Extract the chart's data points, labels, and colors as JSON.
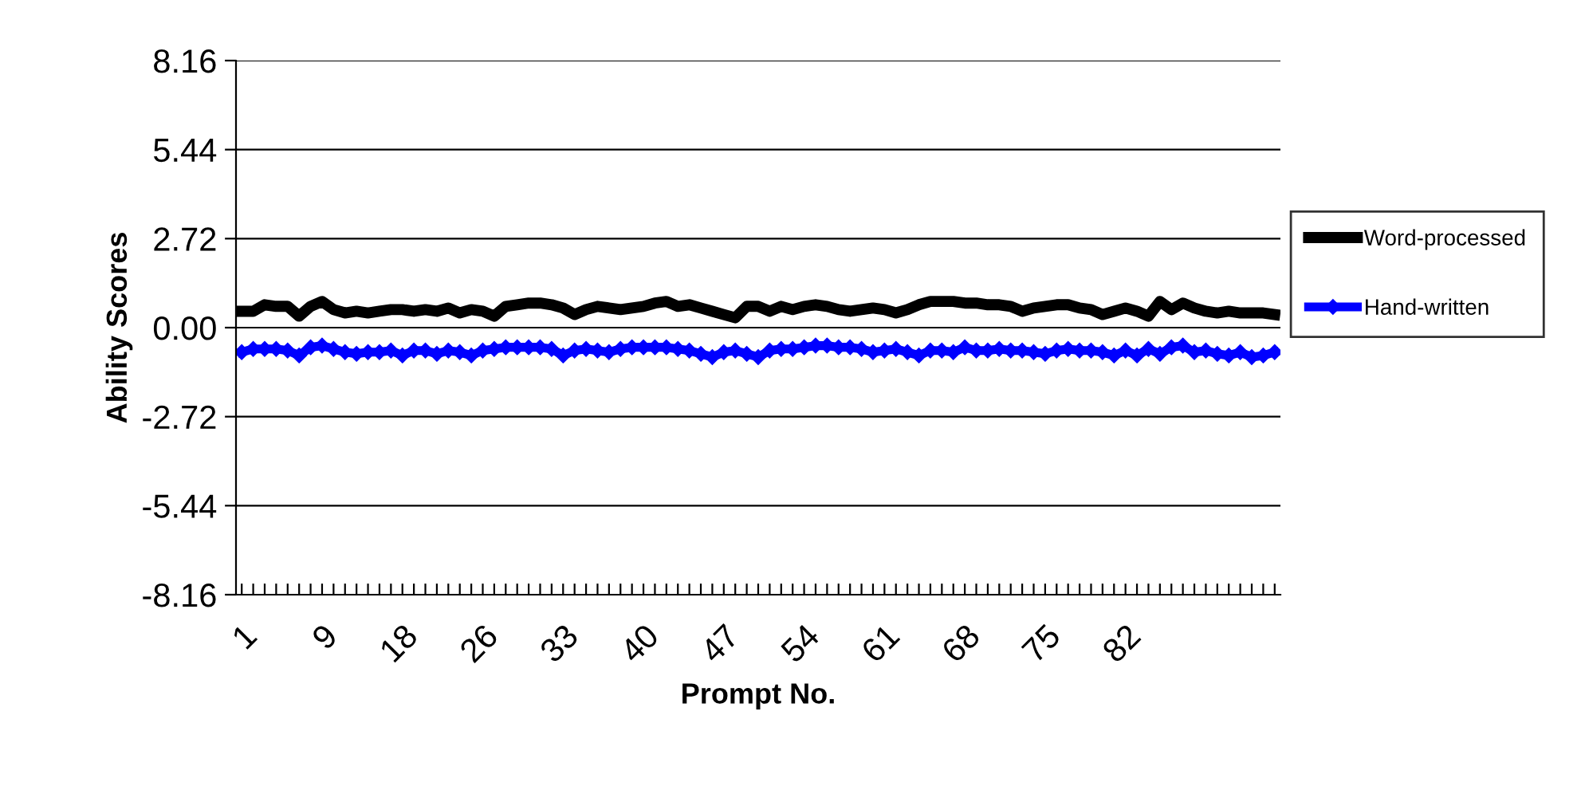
{
  "chart_data": {
    "type": "line",
    "xlabel": "Prompt No.",
    "ylabel": "Ability Scores",
    "categories": [
      "1",
      null,
      null,
      null,
      null,
      null,
      null,
      "9",
      null,
      null,
      null,
      null,
      null,
      null,
      "18",
      null,
      null,
      null,
      null,
      null,
      null,
      "26",
      null,
      null,
      null,
      null,
      null,
      null,
      "33",
      null,
      null,
      null,
      null,
      null,
      null,
      "40",
      null,
      null,
      null,
      null,
      null,
      null,
      "47",
      null,
      null,
      null,
      null,
      null,
      null,
      "54",
      null,
      null,
      null,
      null,
      null,
      null,
      "61",
      null,
      null,
      null,
      null,
      null,
      null,
      "68",
      null,
      null,
      null,
      null,
      null,
      null,
      "75",
      null,
      null,
      null,
      null,
      null,
      null,
      "82",
      null,
      null,
      null,
      null,
      null,
      null,
      null,
      null,
      null,
      null,
      null,
      null,
      null
    ],
    "series": [
      {
        "name": "Word-processed",
        "color": "#000000",
        "marker": "none",
        "values": [
          0.5,
          0.5,
          0.7,
          0.65,
          0.65,
          0.35,
          0.65,
          0.8,
          0.55,
          0.45,
          0.5,
          0.45,
          0.5,
          0.55,
          0.55,
          0.5,
          0.55,
          0.5,
          0.6,
          0.45,
          0.55,
          0.5,
          0.35,
          0.65,
          0.7,
          0.75,
          0.75,
          0.7,
          0.6,
          0.4,
          0.55,
          0.65,
          0.6,
          0.55,
          0.6,
          0.65,
          0.75,
          0.8,
          0.65,
          0.7,
          0.6,
          0.5,
          0.4,
          0.3,
          0.65,
          0.65,
          0.5,
          0.65,
          0.55,
          0.65,
          0.7,
          0.65,
          0.55,
          0.5,
          0.55,
          0.6,
          0.55,
          0.45,
          0.55,
          0.7,
          0.8,
          0.8,
          0.8,
          0.75,
          0.75,
          0.7,
          0.7,
          0.65,
          0.5,
          0.6,
          0.65,
          0.7,
          0.7,
          0.6,
          0.55,
          0.4,
          0.5,
          0.6,
          0.5,
          0.35,
          0.8,
          0.55,
          0.75,
          0.6,
          0.5,
          0.45,
          0.5,
          0.45,
          0.45,
          0.45,
          0.4
        ]
      },
      {
        "name": "Hand-written",
        "color": "#0000ff",
        "marker": "diamond",
        "values": [
          -0.75,
          -0.65,
          -0.65,
          -0.65,
          -0.7,
          -0.85,
          -0.6,
          -0.55,
          -0.65,
          -0.75,
          -0.8,
          -0.75,
          -0.75,
          -0.7,
          -0.85,
          -0.7,
          -0.7,
          -0.8,
          -0.7,
          -0.75,
          -0.85,
          -0.7,
          -0.65,
          -0.6,
          -0.6,
          -0.6,
          -0.6,
          -0.65,
          -0.85,
          -0.7,
          -0.65,
          -0.7,
          -0.75,
          -0.65,
          -0.6,
          -0.6,
          -0.6,
          -0.6,
          -0.65,
          -0.7,
          -0.8,
          -0.9,
          -0.75,
          -0.7,
          -0.8,
          -0.9,
          -0.7,
          -0.65,
          -0.65,
          -0.6,
          -0.55,
          -0.55,
          -0.6,
          -0.6,
          -0.65,
          -0.75,
          -0.7,
          -0.65,
          -0.75,
          -0.85,
          -0.7,
          -0.7,
          -0.75,
          -0.6,
          -0.7,
          -0.7,
          -0.65,
          -0.7,
          -0.7,
          -0.75,
          -0.8,
          -0.7,
          -0.65,
          -0.7,
          -0.7,
          -0.75,
          -0.85,
          -0.7,
          -0.85,
          -0.65,
          -0.8,
          -0.6,
          -0.55,
          -0.75,
          -0.7,
          -0.8,
          -0.85,
          -0.75,
          -0.9,
          -0.85,
          -0.75
        ]
      }
    ],
    "ylim": [
      -8.16,
      8.16
    ],
    "yticks": [
      {
        "value": -8.16,
        "label": "-8.16"
      },
      {
        "value": -5.44,
        "label": "-5.44"
      },
      {
        "value": -2.72,
        "label": "-2.72"
      },
      {
        "value": 0,
        "label": "0.00"
      },
      {
        "value": 2.72,
        "label": "2.72"
      },
      {
        "value": 5.44,
        "label": "5.44"
      },
      {
        "value": 8.16,
        "label": "8.16"
      }
    ],
    "grid": "y",
    "legend": "right"
  }
}
